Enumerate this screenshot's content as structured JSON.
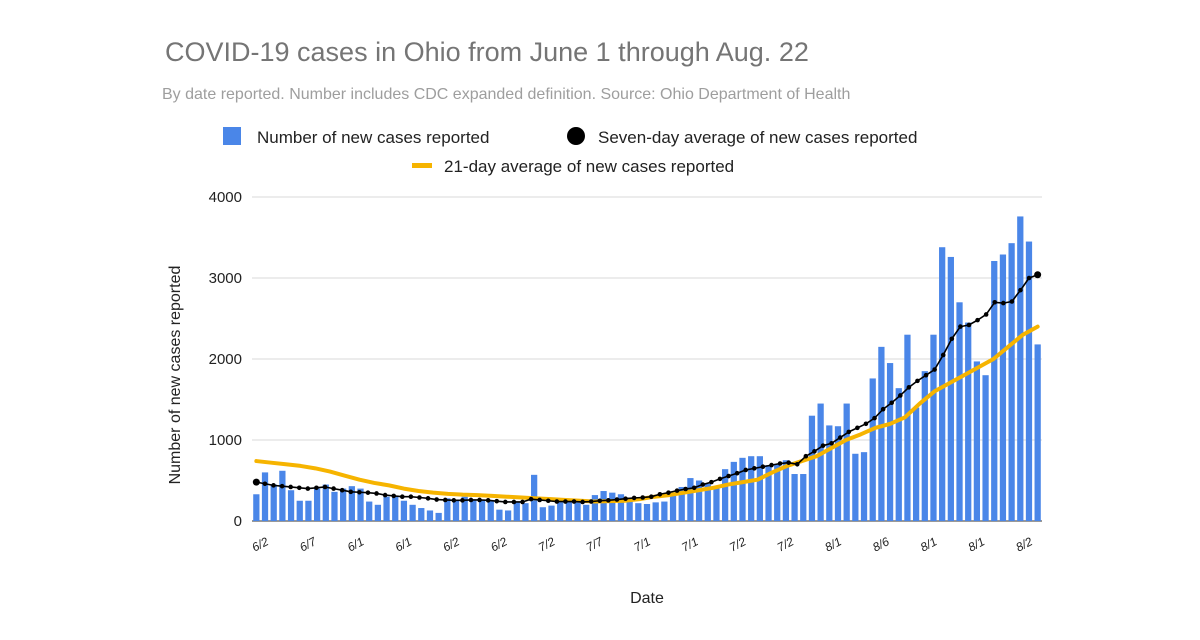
{
  "chart_data": {
    "type": "bar",
    "title": "COVID-19 cases in Ohio from June 1 through Aug. 22",
    "subtitle": "By date reported. Number includes CDC expanded definition. Source: Ohio Department of Health",
    "xlabel": "Date",
    "ylabel": "Number of new cases reported",
    "ylim": [
      0,
      4000
    ],
    "yticks": [
      0,
      1000,
      2000,
      3000,
      4000
    ],
    "grid": true,
    "legend_position": "top",
    "x_tick_labels": [
      "6/2",
      "6/7",
      "6/1",
      "6/1",
      "6/2",
      "6/2",
      "7/2",
      "7/7",
      "7/1",
      "7/1",
      "7/2",
      "7/2",
      "8/1",
      "8/6",
      "8/1",
      "8/1",
      "8/2"
    ],
    "colors": {
      "bars": "#4a86e8",
      "seven_day": "#000000",
      "twenty_one_day": "#f6b400",
      "title": "#757575",
      "subtitle": "#9e9e9e",
      "grid": "#dadada"
    },
    "series": [
      {
        "name": "Number of new cases reported",
        "type": "bar",
        "values": [
          330,
          600,
          450,
          620,
          380,
          250,
          250,
          400,
          450,
          360,
          400,
          430,
          400,
          240,
          200,
          300,
          310,
          250,
          200,
          160,
          130,
          100,
          280,
          250,
          300,
          260,
          260,
          250,
          140,
          130,
          230,
          220,
          570,
          170,
          190,
          230,
          260,
          250,
          200,
          320,
          370,
          350,
          330,
          290,
          220,
          210,
          230,
          240,
          350,
          420,
          530,
          500,
          460,
          420,
          640,
          730,
          780,
          800,
          800,
          690,
          700,
          750,
          580,
          580,
          1300,
          1450,
          1180,
          1170,
          1450,
          830,
          850,
          1760,
          2150,
          1950,
          1640,
          2300,
          1400,
          1850,
          2300,
          3380,
          3260,
          2700,
          2450,
          1970,
          1800,
          3210,
          3290,
          3430,
          3760,
          3450,
          2180
        ]
      },
      {
        "name": "Seven-day average of new cases reported",
        "type": "line",
        "values": [
          480,
          460,
          440,
          430,
          420,
          410,
          400,
          410,
          420,
          400,
          380,
          360,
          355,
          350,
          340,
          320,
          310,
          300,
          300,
          290,
          280,
          265,
          260,
          255,
          255,
          260,
          260,
          255,
          245,
          235,
          235,
          235,
          270,
          260,
          250,
          240,
          240,
          240,
          235,
          240,
          250,
          255,
          265,
          275,
          285,
          290,
          300,
          330,
          350,
          375,
          395,
          410,
          450,
          480,
          520,
          555,
          590,
          630,
          650,
          670,
          690,
          710,
          720,
          700,
          800,
          860,
          930,
          960,
          1030,
          1100,
          1150,
          1200,
          1270,
          1380,
          1460,
          1550,
          1650,
          1730,
          1800,
          1870,
          2050,
          2250,
          2400,
          2420,
          2480,
          2550,
          2700,
          2690,
          2710,
          2850,
          3000,
          3040
        ]
      },
      {
        "name": "21-day average of new cases reported",
        "type": "line",
        "values": [
          740,
          720,
          700,
          680,
          650,
          610,
          560,
          510,
          470,
          440,
          400,
          370,
          350,
          335,
          325,
          320,
          310,
          300,
          290,
          280,
          270,
          260,
          250,
          240,
          245,
          250,
          270,
          300,
          320,
          350,
          380,
          410,
          450,
          480,
          510,
          600,
          680,
          740,
          800,
          900,
          1000,
          1070,
          1150,
          1200,
          1280,
          1450,
          1600,
          1700,
          1800,
          1900,
          2000,
          2150,
          2300,
          2400
        ]
      }
    ]
  }
}
